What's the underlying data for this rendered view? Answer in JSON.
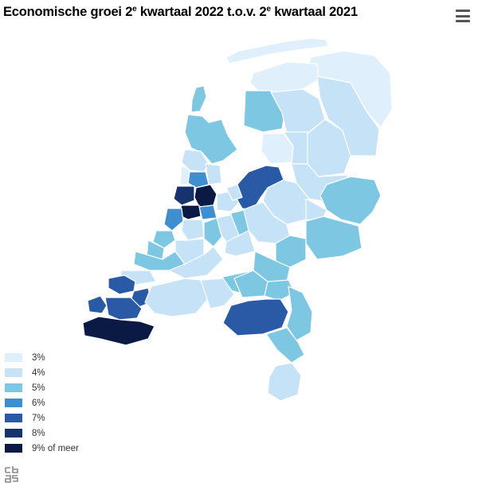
{
  "title": {
    "prefix": "Economische groei 2",
    "sup1": "e",
    "middle": " kwartaal 2022 t.o.v. 2",
    "sup2": "e",
    "suffix": " kwartaal 2021"
  },
  "menu_icon": "hamburger-menu-icon",
  "logo_icon": "cbs-logo-icon",
  "legend": [
    {
      "label": "3%",
      "color": "#dfeffb"
    },
    {
      "label": "4%",
      "color": "#c6e2f6"
    },
    {
      "label": "5%",
      "color": "#7ec7e2"
    },
    {
      "label": "6%",
      "color": "#3f8fd0"
    },
    {
      "label": "7%",
      "color": "#2a5aa6"
    },
    {
      "label": "8%",
      "color": "#17336f"
    },
    {
      "label": "9% of meer",
      "color": "#0a1a45"
    }
  ]
}
